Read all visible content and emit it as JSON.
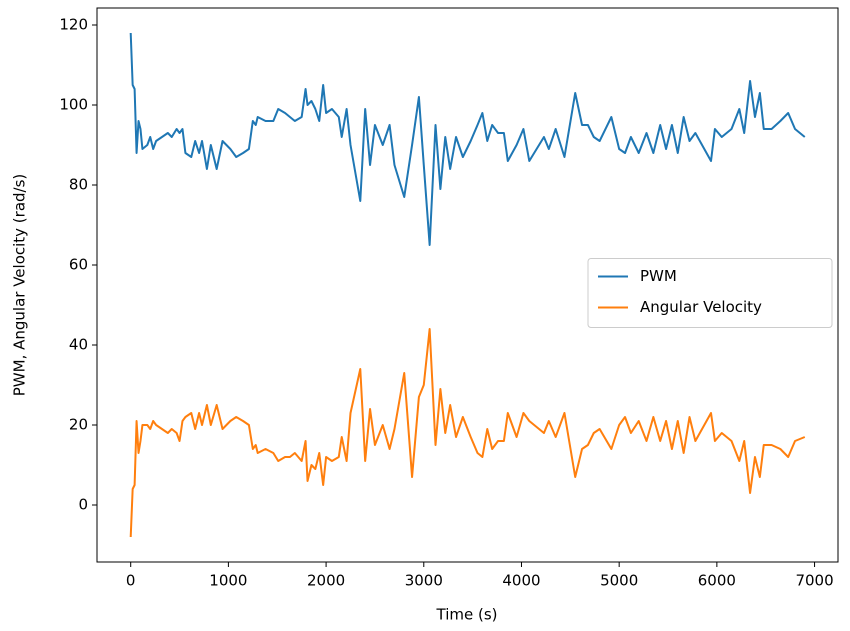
{
  "chart_data": {
    "type": "line",
    "xlabel": "Time (s)",
    "ylabel": "PWM, Angular Velocity (rad/s)",
    "x": [
      0,
      20,
      40,
      60,
      80,
      100,
      120,
      170,
      200,
      230,
      260,
      320,
      380,
      420,
      470,
      500,
      530,
      560,
      620,
      660,
      700,
      730,
      780,
      820,
      880,
      940,
      1020,
      1080,
      1150,
      1210,
      1250,
      1280,
      1300,
      1380,
      1460,
      1510,
      1580,
      1630,
      1680,
      1750,
      1790,
      1810,
      1850,
      1890,
      1930,
      1970,
      2000,
      2060,
      2130,
      2160,
      2210,
      2250,
      2350,
      2400,
      2450,
      2500,
      2580,
      2650,
      2700,
      2800,
      2880,
      2950,
      3000,
      3060,
      3120,
      3170,
      3220,
      3270,
      3330,
      3400,
      3480,
      3550,
      3600,
      3650,
      3700,
      3760,
      3820,
      3860,
      3950,
      4020,
      4080,
      4230,
      4280,
      4350,
      4440,
      4550,
      4620,
      4680,
      4740,
      4800,
      4920,
      5000,
      5060,
      5120,
      5200,
      5280,
      5350,
      5420,
      5480,
      5540,
      5600,
      5660,
      5720,
      5780,
      5940,
      5980,
      6050,
      6150,
      6230,
      6280,
      6340,
      6390,
      6440,
      6480,
      6560,
      6650,
      6730,
      6800,
      6900
    ],
    "series": [
      {
        "name": "PWM",
        "color": "#1f77b4",
        "values": [
          118,
          105,
          104,
          88,
          96,
          94,
          89,
          90,
          92,
          89,
          91,
          92,
          93,
          92,
          94,
          93,
          94,
          88,
          87,
          91,
          88,
          91,
          84,
          90,
          84,
          91,
          89,
          87,
          88,
          89,
          96,
          95,
          97,
          96,
          96,
          99,
          98,
          97,
          96,
          97,
          104,
          100,
          101,
          99,
          96,
          105,
          98,
          99,
          97,
          92,
          99,
          90,
          76,
          99,
          85,
          95,
          90,
          95,
          85,
          77,
          90,
          102,
          85,
          65,
          95,
          79,
          92,
          84,
          92,
          87,
          91,
          95,
          98,
          91,
          95,
          93,
          93,
          86,
          90,
          94,
          86,
          92,
          89,
          94,
          87,
          103,
          95,
          95,
          92,
          91,
          97,
          89,
          88,
          92,
          88,
          93,
          88,
          95,
          89,
          95,
          88,
          97,
          91,
          93,
          86,
          94,
          92,
          94,
          99,
          93,
          106,
          97,
          103,
          94,
          94,
          96,
          98,
          94,
          92
        ]
      },
      {
        "name": "Angular Velocity",
        "color": "#ff7f0e",
        "values": [
          -8,
          4,
          5,
          21,
          13,
          16,
          20,
          20,
          19,
          21,
          20,
          19,
          18,
          19,
          18,
          16,
          21,
          22,
          23,
          19,
          23,
          20,
          25,
          20,
          25,
          19,
          21,
          22,
          21,
          20,
          14,
          15,
          13,
          14,
          13,
          11,
          12,
          12,
          13,
          11,
          16,
          6,
          10,
          9,
          13,
          5,
          12,
          11,
          12,
          17,
          11,
          23,
          34,
          11,
          24,
          15,
          20,
          14,
          19,
          33,
          7,
          27,
          30,
          44,
          15,
          29,
          18,
          25,
          17,
          22,
          17,
          13,
          12,
          19,
          14,
          16,
          16,
          23,
          17,
          23,
          21,
          18,
          21,
          17,
          23,
          7,
          14,
          15,
          18,
          19,
          14,
          20,
          22,
          18,
          21,
          16,
          22,
          16,
          21,
          14,
          21,
          13,
          22,
          16,
          23,
          16,
          18,
          16,
          11,
          16,
          3,
          12,
          7,
          15,
          15,
          14,
          12,
          16,
          17
        ]
      }
    ],
    "xlim": [
      -345,
      7240
    ],
    "ylim": [
      -14.25,
      124.25
    ],
    "xticks": [
      0,
      1000,
      2000,
      3000,
      4000,
      5000,
      6000,
      7000
    ],
    "yticks": [
      0,
      20,
      40,
      60,
      80,
      100,
      120
    ],
    "legend": "center right",
    "grid": false
  }
}
